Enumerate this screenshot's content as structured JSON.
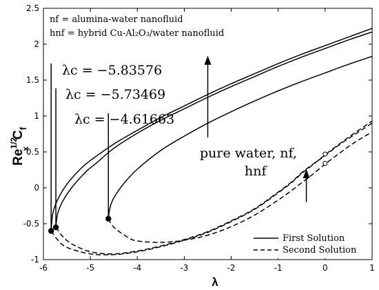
{
  "chart_data": {
    "type": "line",
    "xlabel": "λ",
    "ylabel": {
      "main": "Re",
      "sup": "1/2",
      "sub": "x",
      "rest": "C",
      "sub2": "f"
    },
    "xlim": [
      -6,
      1
    ],
    "ylim": [
      -1,
      2.5
    ],
    "x_ticks": [
      -6,
      -5,
      -4,
      -3,
      -2,
      -1,
      0,
      1
    ],
    "y_ticks": [
      -1,
      -0.5,
      0,
      0.5,
      1,
      1.5,
      2,
      2.5
    ],
    "grid": false,
    "box_notes": [
      "nf = alumina-water nanofluid",
      "hnf = hybrid Cu-Al₂O₃/water nanofluid"
    ],
    "critical_labels": [
      {
        "text": "λc = −5.83576",
        "lambda": -5.83576,
        "value": -0.6
      },
      {
        "text": "λc = −5.73469",
        "lambda": -5.73469,
        "value": -0.55
      },
      {
        "text": "λc = −4.61663",
        "lambda": -4.61663,
        "value": -0.43
      }
    ],
    "annotations": {
      "upper_arrow_label": [
        "pure water, nf,",
        "hnf"
      ],
      "lower_arrow": true
    },
    "legend": {
      "position": "bottom-right",
      "entries": [
        {
          "name": "First Solution",
          "style": "solid"
        },
        {
          "name": "Second Solution",
          "style": "dashed"
        }
      ]
    },
    "series": [
      {
        "group": "hnf",
        "style": "solid",
        "x": [
          -5.83576,
          -5.8,
          -5.7,
          -5.5,
          -5.2,
          -5.0,
          -4.5,
          -4.0,
          -3.5,
          -3.0,
          -2.5,
          -2.0,
          -1.5,
          -1.0,
          -0.5,
          0.0,
          0.5,
          1.0
        ],
        "y": [
          -0.6,
          -0.36,
          -0.17,
          0.05,
          0.27,
          0.38,
          0.61,
          0.8,
          0.98,
          1.14,
          1.3,
          1.45,
          1.59,
          1.73,
          1.86,
          1.98,
          2.1,
          2.22
        ]
      },
      {
        "group": "nf",
        "style": "solid",
        "x": [
          -5.73469,
          -5.7,
          -5.6,
          -5.4,
          -5.1,
          -4.9,
          -4.5,
          -4.0,
          -3.5,
          -3.0,
          -2.5,
          -2.0,
          -1.5,
          -1.0,
          -0.5,
          0.0,
          0.5,
          1.0
        ],
        "y": [
          -0.55,
          -0.37,
          -0.2,
          0.0,
          0.22,
          0.33,
          0.55,
          0.76,
          0.94,
          1.1,
          1.26,
          1.41,
          1.55,
          1.69,
          1.82,
          1.94,
          2.06,
          2.17
        ]
      },
      {
        "group": "pure water",
        "style": "solid",
        "x": [
          -4.61663,
          -4.58,
          -4.5,
          -4.3,
          -4.0,
          -3.5,
          -3.0,
          -2.5,
          -2.0,
          -1.5,
          -1.0,
          -0.5,
          0.0,
          0.5,
          1.0
        ],
        "y": [
          -0.43,
          -0.27,
          -0.14,
          0.05,
          0.26,
          0.52,
          0.72,
          0.9,
          1.06,
          1.21,
          1.35,
          1.48,
          1.6,
          1.72,
          1.83
        ]
      },
      {
        "group": "hnf",
        "style": "dashed",
        "x": [
          -5.83576,
          -5.7,
          -5.5,
          -5.0,
          -4.5,
          -4.0,
          -3.5,
          -3.0,
          -2.5,
          -2.0,
          -1.5,
          -1.0,
          -0.7,
          -0.5,
          -0.3,
          0.0,
          0.3,
          0.6,
          1.0
        ],
        "y": [
          -0.6,
          -0.72,
          -0.83,
          -0.92,
          -0.93,
          -0.89,
          -0.82,
          -0.73,
          -0.62,
          -0.47,
          -0.3,
          -0.07,
          0.08,
          0.2,
          0.3,
          0.46,
          0.61,
          0.75,
          0.93
        ]
      },
      {
        "group": "nf",
        "style": "dashed",
        "x": [
          -5.73469,
          -5.6,
          -5.4,
          -5.0,
          -4.5,
          -4.0,
          -3.5,
          -3.0,
          -2.5,
          -2.0,
          -1.5,
          -1.0,
          -0.7,
          -0.5,
          -0.3,
          0.0,
          0.3,
          0.6,
          1.0
        ],
        "y": [
          -0.55,
          -0.67,
          -0.78,
          -0.89,
          -0.92,
          -0.88,
          -0.81,
          -0.72,
          -0.61,
          -0.46,
          -0.29,
          -0.06,
          0.09,
          0.21,
          0.31,
          0.45,
          0.6,
          0.73,
          0.9
        ]
      },
      {
        "group": "pure water",
        "style": "dashed",
        "x": [
          -4.61663,
          -4.5,
          -4.2,
          -4.0,
          -3.5,
          -3.0,
          -2.5,
          -2.0,
          -1.5,
          -1.0,
          -0.7,
          -0.5,
          -0.3,
          0.0,
          0.3,
          0.6,
          1.0
        ],
        "y": [
          -0.43,
          -0.55,
          -0.69,
          -0.74,
          -0.76,
          -0.73,
          -0.66,
          -0.54,
          -0.38,
          -0.17,
          -0.03,
          0.07,
          0.17,
          0.33,
          0.48,
          0.62,
          0.78
        ]
      }
    ]
  }
}
